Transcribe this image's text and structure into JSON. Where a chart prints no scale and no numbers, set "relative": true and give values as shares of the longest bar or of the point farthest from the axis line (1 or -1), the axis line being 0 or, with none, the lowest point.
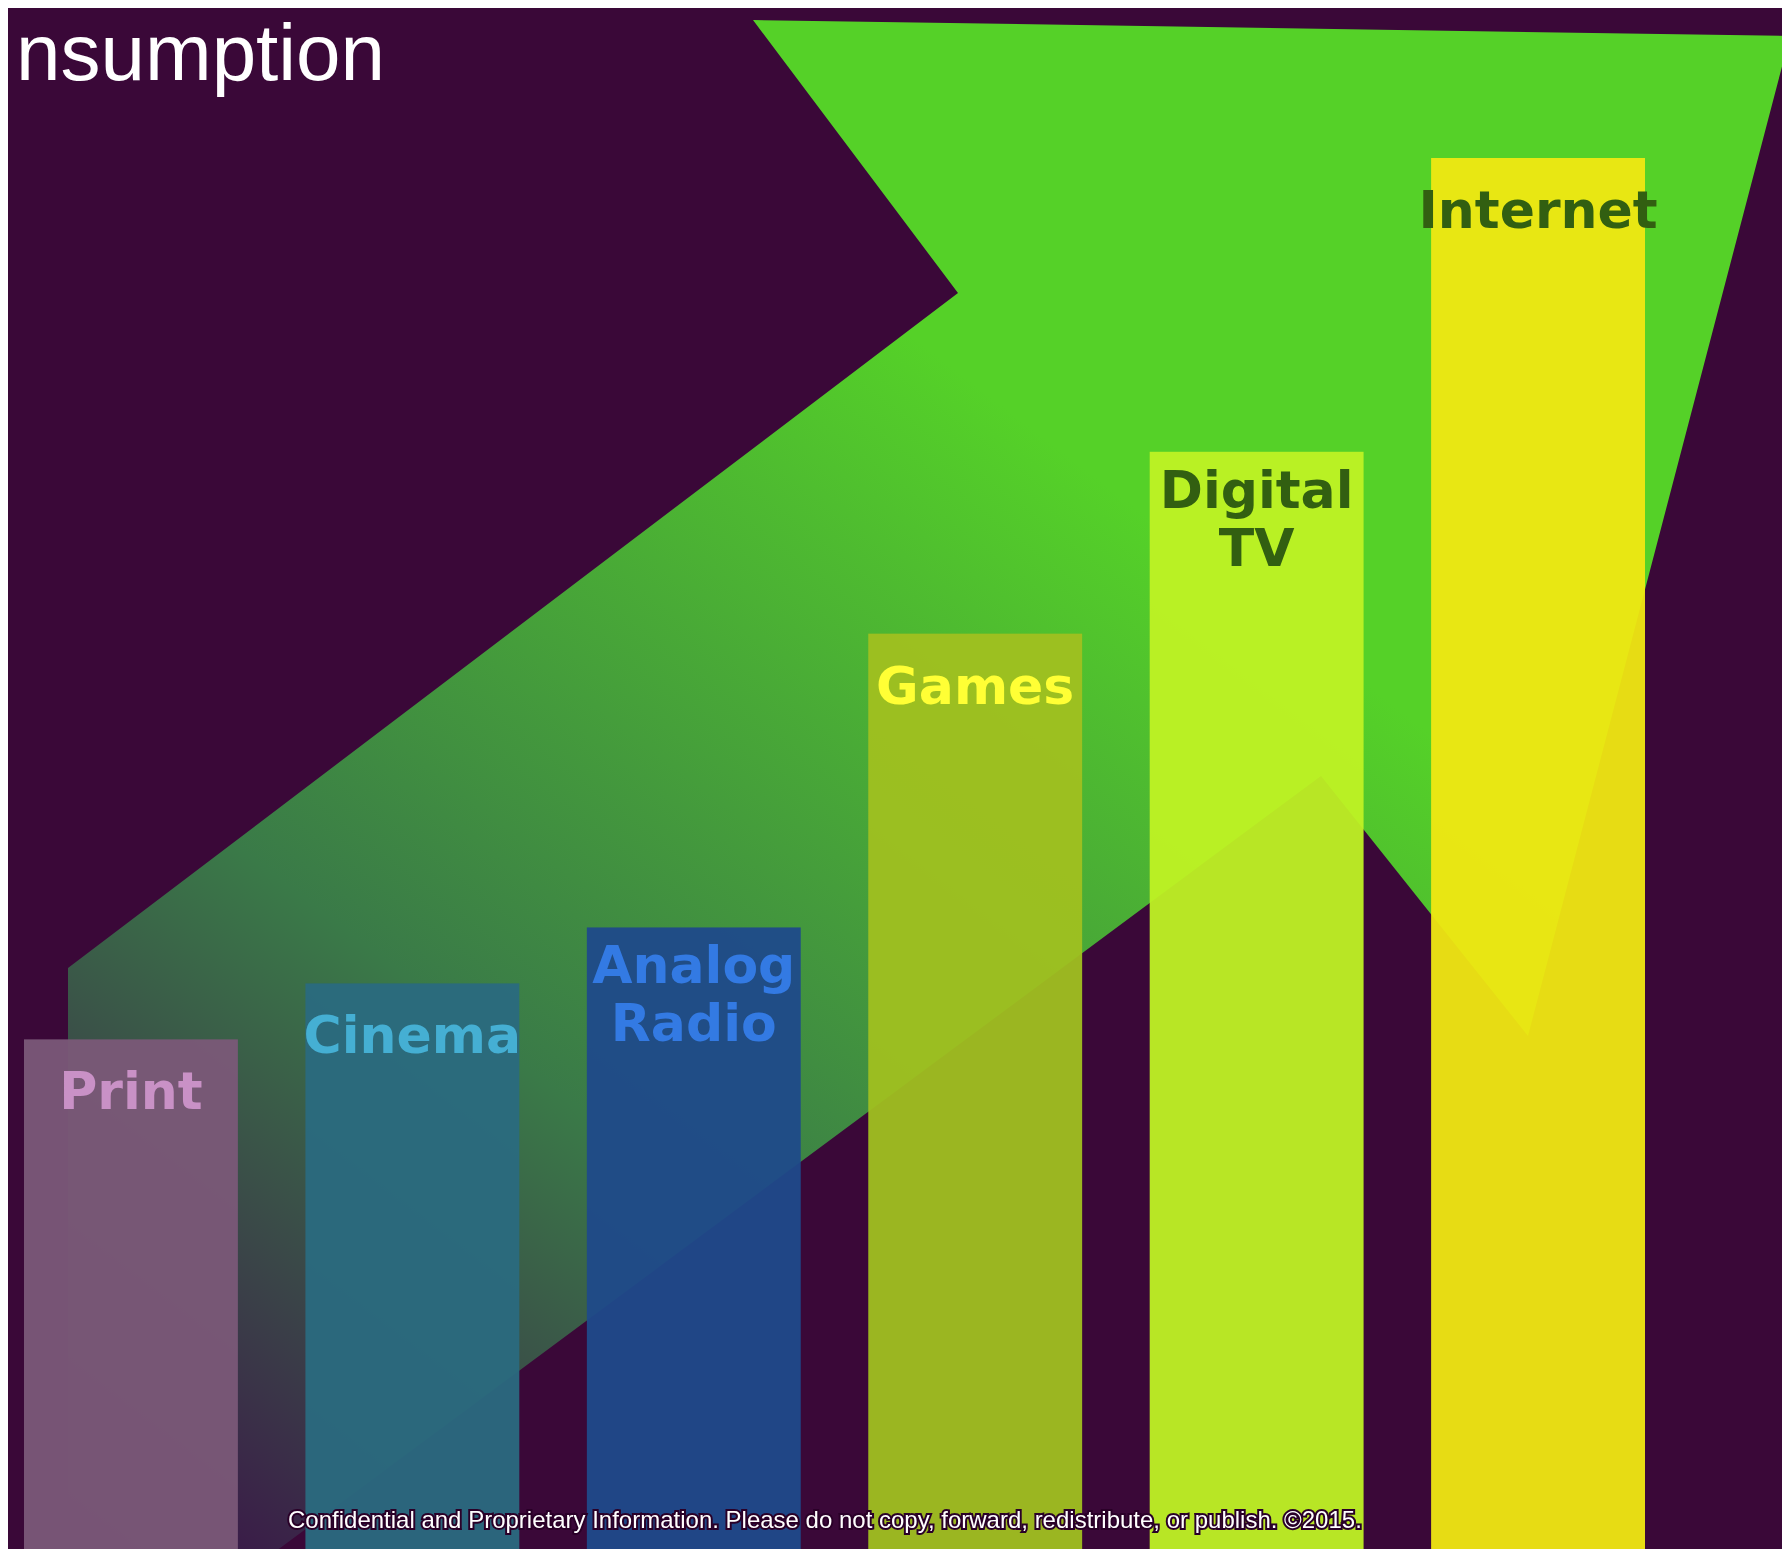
{
  "chart_data": {
    "type": "bar",
    "title": "nsumption",
    "relative": true,
    "categories": [
      "Print",
      "Cinema",
      "Analog Radio",
      "Games",
      "Digital TV",
      "Internet"
    ],
    "values": [
      0.37,
      0.41,
      0.45,
      0.66,
      0.79,
      1
    ],
    "colors": [
      "#7a5878",
      "#2a6a80",
      "#1f4a8a",
      "#a0c020",
      "#bff224",
      "#f0e812"
    ],
    "annotations": [
      "Confidential and Proprietary Information. Please do not copy, forward, redistribute, or publish. ©2015."
    ]
  }
}
